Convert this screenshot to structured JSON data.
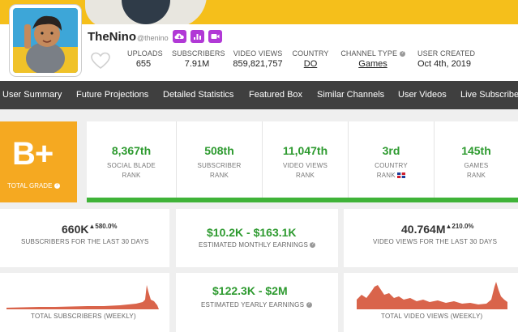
{
  "header": {
    "channel_name": "TheNino",
    "handle": "@thenino",
    "social_icons": [
      "cloud-icon",
      "bar-chart-icon",
      "video-icon"
    ]
  },
  "stats": {
    "uploads": {
      "label": "UPLOADS",
      "value": "655"
    },
    "subscribers": {
      "label": "SUBSCRIBERS",
      "value": "7.91M"
    },
    "video_views": {
      "label": "VIDEO VIEWS",
      "value": "859,821,757"
    },
    "country": {
      "label": "COUNTRY",
      "value": "DO"
    },
    "channel_type": {
      "label": "CHANNEL TYPE",
      "value": "Games"
    },
    "user_created": {
      "label": "USER CREATED",
      "value": "Oct 4th, 2019"
    }
  },
  "nav": {
    "items": [
      "User Summary",
      "Future Projections",
      "Detailed Statistics",
      "Featured Box",
      "Similar Channels",
      "User Videos",
      "Live Subscriber Count"
    ]
  },
  "grade": {
    "value": "B+",
    "label": "TOTAL GRADE"
  },
  "ranks": [
    {
      "value": "8,367th",
      "line1": "SOCIAL BLADE",
      "line2": "RANK"
    },
    {
      "value": "508th",
      "line1": "SUBSCRIBER",
      "line2": "RANK"
    },
    {
      "value": "11,047th",
      "line1": "VIDEO VIEWS",
      "line2": "RANK"
    },
    {
      "value": "3rd",
      "line1": "COUNTRY",
      "line2": "RANK"
    },
    {
      "value": "145th",
      "line1": "GAMES",
      "line2": "RANK"
    }
  ],
  "cards": {
    "subs30": {
      "value": "660K",
      "delta": "▲580.0%",
      "label": "SUBSCRIBERS FOR THE LAST 30 DAYS"
    },
    "monthly": {
      "value": "$10.2K  -  $163.1K",
      "label": "ESTIMATED MONTHLY EARNINGS"
    },
    "views30": {
      "value": "40.764M",
      "delta": "▲210.0%",
      "label": "VIDEO VIEWS FOR THE LAST 30 DAYS"
    },
    "weekly_subs": {
      "label": "TOTAL SUBSCRIBERS (WEEKLY)"
    },
    "yearly": {
      "value": "$122.3K  -  $2M",
      "label": "ESTIMATED YEARLY EARNINGS"
    },
    "weekly_views": {
      "label": "TOTAL VIDEO VIEWS (WEEKLY)"
    }
  },
  "colors": {
    "accent": "#f5bf1b",
    "grade": "#f5a921",
    "green": "#2d9a2f",
    "nav_bg": "#3f3f3f",
    "chart_fill": "#d9644b",
    "social_button": "#b139d6"
  }
}
